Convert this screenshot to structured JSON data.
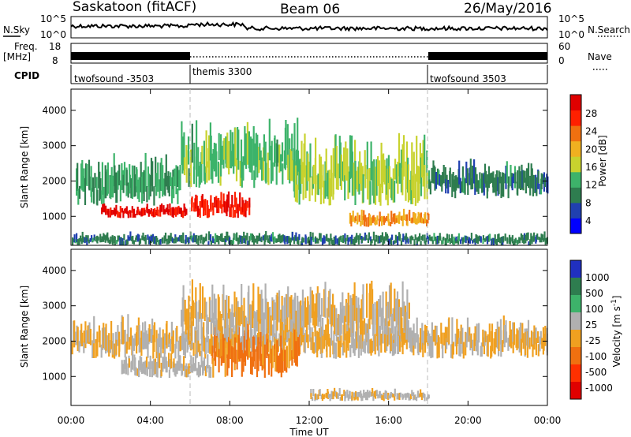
{
  "header": {
    "station": "Saskatoon (fitACF)",
    "beam": "Beam 06",
    "date": "26/May/2016"
  },
  "nsky_panel": {
    "left_label": "N.Sky",
    "left_ticks": [
      "10^5",
      "10^0"
    ],
    "right_ticks": [
      "10^5",
      "10^0"
    ],
    "right_label": "N.Search"
  },
  "freq_panel": {
    "left_label_1": "Freq.",
    "left_label_2": "[MHz]",
    "left_ticks": [
      "18",
      "8"
    ],
    "right_ticks": [
      "60",
      "0"
    ],
    "right_label": "Nave"
  },
  "cpid_panel": {
    "label": "CPID",
    "segments": [
      {
        "name": "twofsound -3503",
        "start_hour": 0,
        "end_hour": 6
      },
      {
        "name": "themis 3300",
        "start_hour": 6,
        "end_hour": 18
      },
      {
        "name": "twofsound 3503",
        "start_hour": 18,
        "end_hour": 24
      }
    ]
  },
  "power_panel": {
    "ylabel": "Slant Range [km]",
    "yticks": [
      "4000",
      "3000",
      "2000",
      "1000"
    ],
    "colorbar_label": "Power [dB]",
    "colorbar_ticks": [
      "28",
      "24",
      "20",
      "16",
      "12",
      "8",
      "4"
    ],
    "colors": [
      "#0000ff",
      "#2040b0",
      "#2e7d4f",
      "#3db36a",
      "#c8d22e",
      "#f0b020",
      "#f07010",
      "#ff2000",
      "#e00000"
    ]
  },
  "velocity_panel": {
    "ylabel": "Slant Range [km]",
    "yticks": [
      "4000",
      "3000",
      "2000",
      "1000"
    ],
    "colorbar_label": "Velocity [m s",
    "colorbar_label_exp": "-1",
    "colorbar_label_end": "]",
    "colorbar_ticks": [
      "1000",
      "500",
      "100",
      "25",
      "-25",
      "-100",
      "-500",
      "-1000"
    ],
    "colors": [
      "#2030c0",
      "#2e7d4f",
      "#3db36a",
      "#b0b0b0",
      "#f0a020",
      "#f07010",
      "#ff3000",
      "#e00000"
    ]
  },
  "x_axis": {
    "label": "Time UT",
    "ticks": [
      "00:00",
      "04:00",
      "08:00",
      "12:00",
      "16:00",
      "20:00",
      "00:00"
    ]
  },
  "chart_data": [
    {
      "type": "heatmap",
      "title": "Power [dB]",
      "xlabel": "Time UT",
      "ylabel": "Slant Range [km]",
      "xlim": [
        0,
        24
      ],
      "ylim": [
        180,
        4600
      ],
      "clim": [
        0,
        30
      ],
      "blobs": [
        {
          "t": [
            0.2,
            5.5
          ],
          "r": [
            1300,
            2500
          ],
          "value": 10
        },
        {
          "t": [
            1.5,
            5.8
          ],
          "r": [
            950,
            1300
          ],
          "value": 28
        },
        {
          "t": [
            6.0,
            9.0
          ],
          "r": [
            950,
            1600
          ],
          "value": 26
        },
        {
          "t": [
            5.5,
            11.5
          ],
          "r": [
            1800,
            3400
          ],
          "value": 12
        },
        {
          "t": [
            11.0,
            18.0
          ],
          "r": [
            1300,
            3000
          ],
          "value": 14
        },
        {
          "t": [
            14.0,
            18.0
          ],
          "r": [
            700,
            1100
          ],
          "value": 20
        },
        {
          "t": [
            18.0,
            24.0
          ],
          "r": [
            1500,
            2400
          ],
          "value": 8
        },
        {
          "t": [
            0.0,
            24.0
          ],
          "r": [
            180,
            500
          ],
          "value": 8
        }
      ]
    },
    {
      "type": "heatmap",
      "title": "Velocity [m s-1]",
      "xlabel": "Time UT",
      "ylabel": "Slant Range [km]",
      "xlim": [
        0,
        24
      ],
      "ylim": [
        180,
        4600
      ],
      "clim": [
        -1000,
        1000
      ],
      "blobs": [
        {
          "t": [
            0.0,
            24.0
          ],
          "r": [
            1500,
            2500
          ],
          "value": 0
        },
        {
          "t": [
            2.5,
            7.0
          ],
          "r": [
            950,
            1600
          ],
          "value": 100
        },
        {
          "t": [
            7.0,
            11.5
          ],
          "r": [
            950,
            2300
          ],
          "value": -300
        },
        {
          "t": [
            5.5,
            17.0
          ],
          "r": [
            2000,
            3400
          ],
          "value": 0
        },
        {
          "t": [
            12.0,
            18.0
          ],
          "r": [
            300,
            600
          ],
          "value": 60
        }
      ]
    }
  ]
}
